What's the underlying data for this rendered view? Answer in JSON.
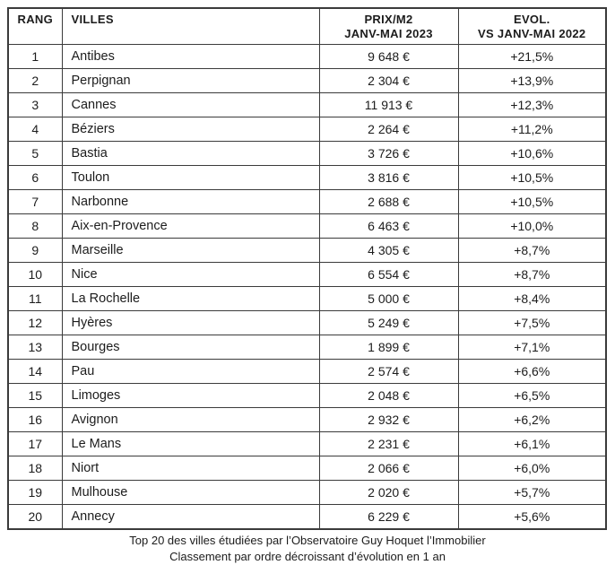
{
  "accent_colors": {
    "text": "#1c1c1c",
    "border": "#3b3b3b",
    "background": "#ffffff"
  },
  "table": {
    "headers": {
      "rank": "RANG",
      "city": "VILLES",
      "price_line1": "PRIX/M2",
      "price_line2": "JANV-MAI 2023",
      "evol_line1": "EVOL.",
      "evol_line2": "VS JANV-MAI 2022"
    },
    "rows": [
      {
        "rank": "1",
        "city": "Antibes",
        "price": "9 648 €",
        "evolution": "+21,5%"
      },
      {
        "rank": "2",
        "city": "Perpignan",
        "price": "2 304 €",
        "evolution": "+13,9%"
      },
      {
        "rank": "3",
        "city": "Cannes",
        "price": "11 913 €",
        "evolution": "+12,3%"
      },
      {
        "rank": "4",
        "city": "Béziers",
        "price": "2 264 €",
        "evolution": "+11,2%"
      },
      {
        "rank": "5",
        "city": "Bastia",
        "price": "3 726 €",
        "evolution": "+10,6%"
      },
      {
        "rank": "6",
        "city": "Toulon",
        "price": "3 816 €",
        "evolution": "+10,5%"
      },
      {
        "rank": "7",
        "city": "Narbonne",
        "price": "2 688 €",
        "evolution": "+10,5%"
      },
      {
        "rank": "8",
        "city": "Aix-en-Provence",
        "price": "6 463 €",
        "evolution": "+10,0%"
      },
      {
        "rank": "9",
        "city": "Marseille",
        "price": "4 305 €",
        "evolution": "+8,7%"
      },
      {
        "rank": "10",
        "city": "Nice",
        "price": "6 554 €",
        "evolution": "+8,7%"
      },
      {
        "rank": "11",
        "city": "La Rochelle",
        "price": "5 000 €",
        "evolution": "+8,4%"
      },
      {
        "rank": "12",
        "city": "Hyères",
        "price": "5 249 €",
        "evolution": "+7,5%"
      },
      {
        "rank": "13",
        "city": "Bourges",
        "price": "1 899 €",
        "evolution": "+7,1%"
      },
      {
        "rank": "14",
        "city": "Pau",
        "price": "2 574 €",
        "evolution": "+6,6%"
      },
      {
        "rank": "15",
        "city": "Limoges",
        "price": "2 048 €",
        "evolution": "+6,5%"
      },
      {
        "rank": "16",
        "city": "Avignon",
        "price": "2 932 €",
        "evolution": "+6,2%"
      },
      {
        "rank": "17",
        "city": "Le Mans",
        "price": "2 231 €",
        "evolution": "+6,1%"
      },
      {
        "rank": "18",
        "city": "Niort",
        "price": "2 066 €",
        "evolution": "+6,0%"
      },
      {
        "rank": "19",
        "city": "Mulhouse",
        "price": "2 020 €",
        "evolution": "+5,7%"
      },
      {
        "rank": "20",
        "city": "Annecy",
        "price": "6 229 €",
        "evolution": "+5,6%"
      }
    ]
  },
  "footer": {
    "line1": "Top 20 des villes étudiées par l’Observatoire Guy Hoquet l’Immobilier",
    "line2": "Classement par ordre décroissant d’évolution en 1 an"
  },
  "chart_data": {
    "type": "table",
    "title": "Top 20 des villes étudiées par l’Observatoire Guy Hoquet l’Immobilier",
    "subtitle": "Classement par ordre décroissant d’évolution en 1 an",
    "columns": [
      "RANG",
      "VILLES",
      "PRIX/M2 JANV-MAI 2023",
      "EVOL. VS JANV-MAI 2022"
    ],
    "rows": [
      [
        1,
        "Antibes",
        9648,
        21.5
      ],
      [
        2,
        "Perpignan",
        2304,
        13.9
      ],
      [
        3,
        "Cannes",
        11913,
        12.3
      ],
      [
        4,
        "Béziers",
        2264,
        11.2
      ],
      [
        5,
        "Bastia",
        3726,
        10.6
      ],
      [
        6,
        "Toulon",
        3816,
        10.5
      ],
      [
        7,
        "Narbonne",
        2688,
        10.5
      ],
      [
        8,
        "Aix-en-Provence",
        6463,
        10.0
      ],
      [
        9,
        "Marseille",
        4305,
        8.7
      ],
      [
        10,
        "Nice",
        6554,
        8.7
      ],
      [
        11,
        "La Rochelle",
        5000,
        8.4
      ],
      [
        12,
        "Hyères",
        5249,
        7.5
      ],
      [
        13,
        "Bourges",
        1899,
        7.1
      ],
      [
        14,
        "Pau",
        2574,
        6.6
      ],
      [
        15,
        "Limoges",
        2048,
        6.5
      ],
      [
        16,
        "Avignon",
        2932,
        6.2
      ],
      [
        17,
        "Le Mans",
        2231,
        6.1
      ],
      [
        18,
        "Niort",
        2066,
        6.0
      ],
      [
        19,
        "Mulhouse",
        2020,
        5.7
      ],
      [
        20,
        "Annecy",
        6229,
        5.6
      ]
    ],
    "units": {
      "price": "EUR/m2",
      "evolution": "percent YoY"
    }
  }
}
